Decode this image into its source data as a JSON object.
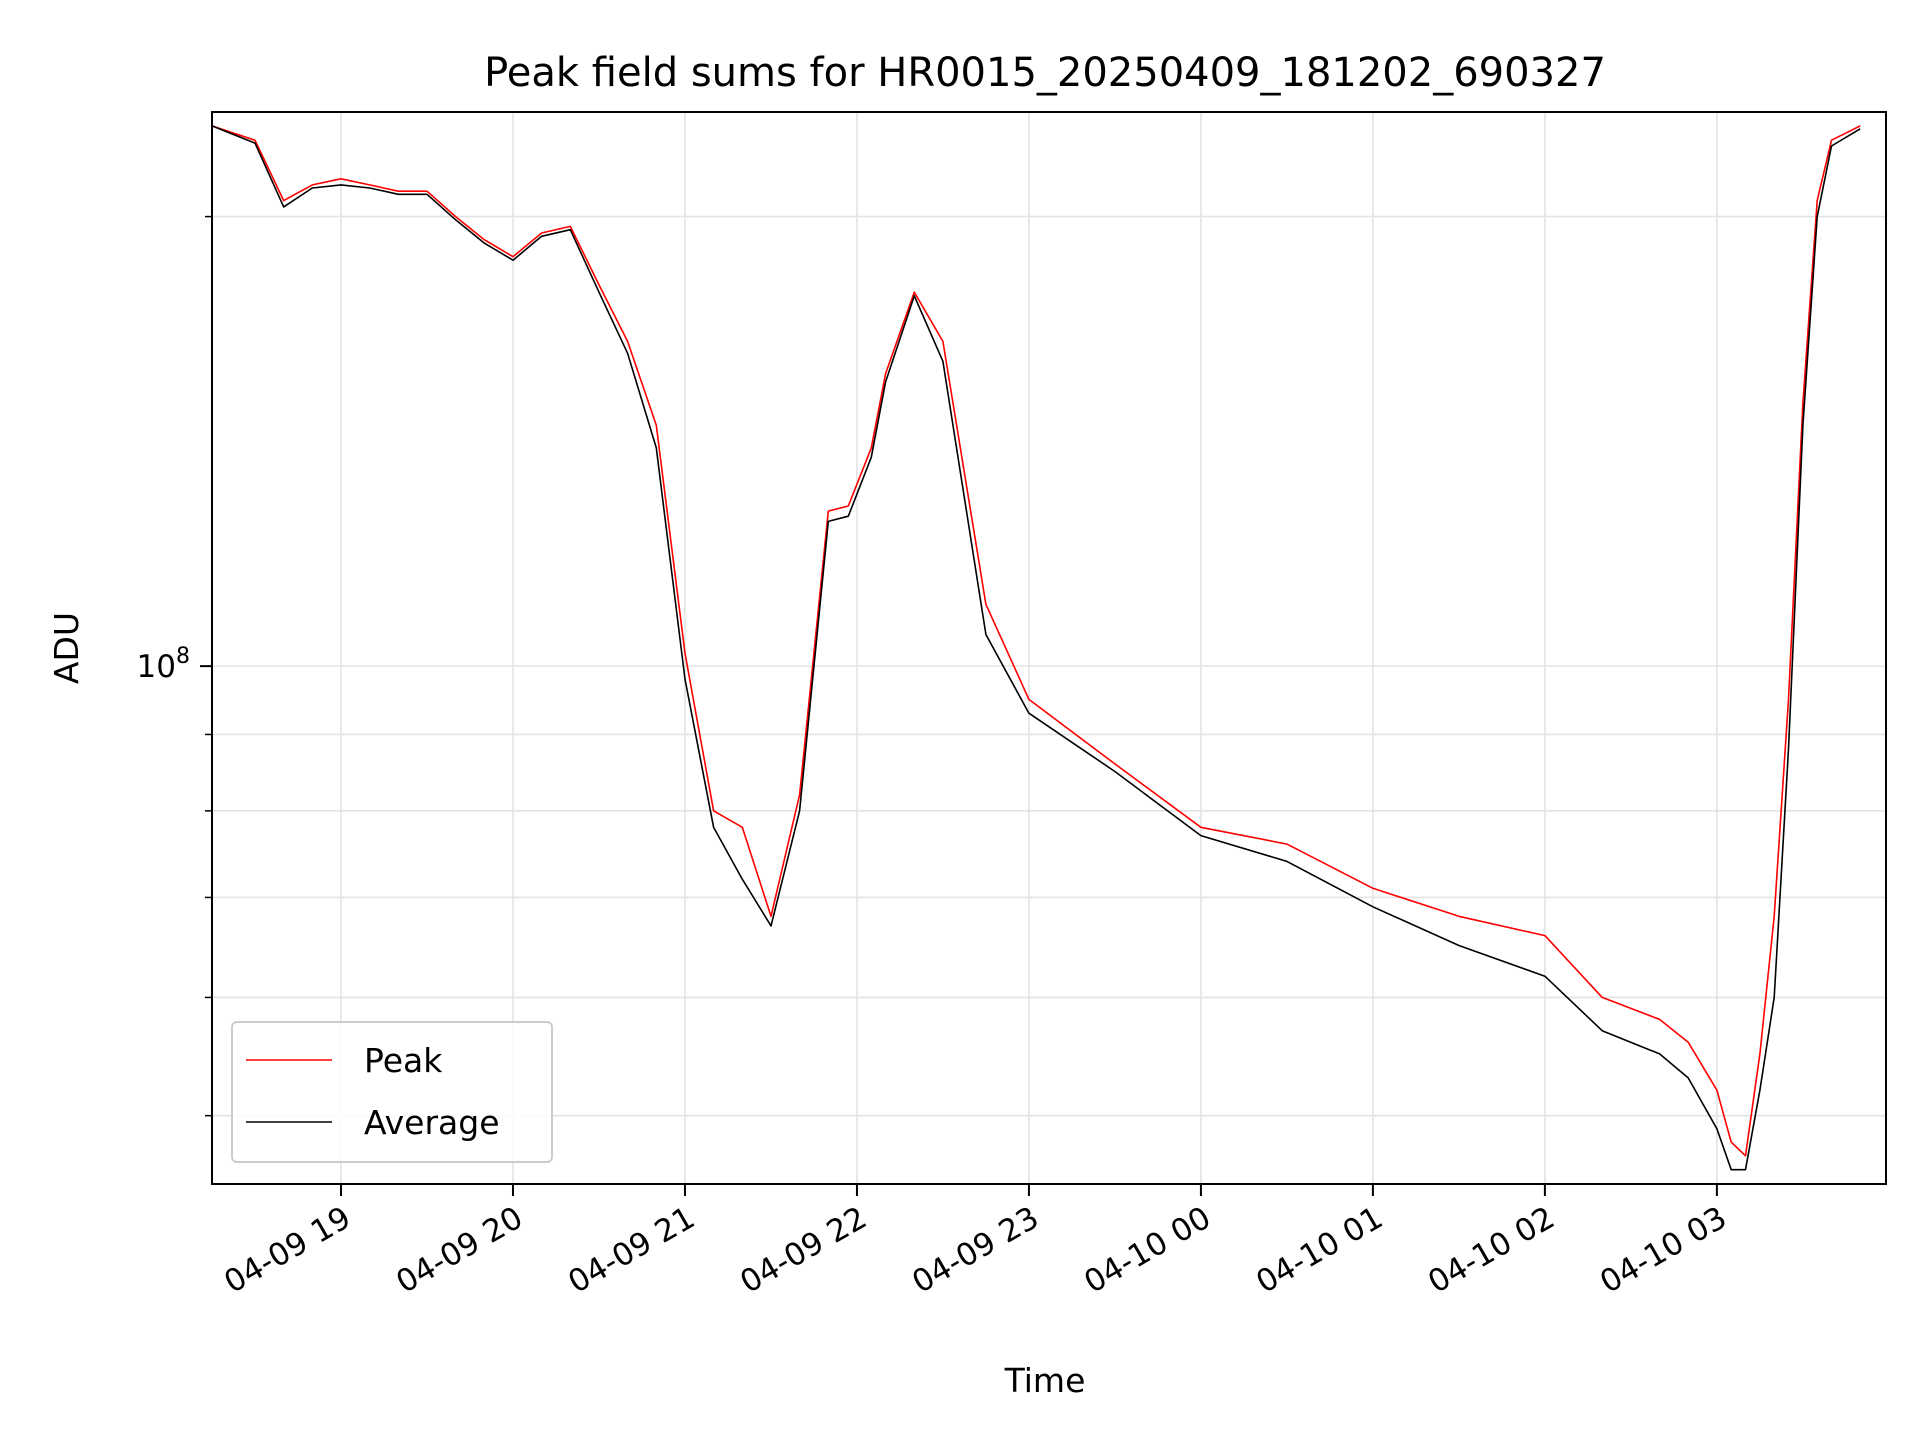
{
  "chart_data": {
    "type": "line",
    "title": "Peak field sums for HR0015_20250409_181202_690327",
    "xlabel": "Time",
    "ylabel": "ADU",
    "y_scale": "log",
    "ylim": [
      45000000,
      235000000
    ],
    "xlim": [
      "2025-04-09T18:15",
      "2025-04-10T03:59"
    ],
    "grid": true,
    "legend_position": "lower-left",
    "x_tick_labels": [
      "04-09 19",
      "04-09 20",
      "04-09 21",
      "04-09 22",
      "04-09 23",
      "04-10 00",
      "04-10 01",
      "04-10 02",
      "04-10 03"
    ],
    "x_ticks": [
      "2025-04-09T19:00",
      "2025-04-09T20:00",
      "2025-04-09T21:00",
      "2025-04-09T22:00",
      "2025-04-09T23:00",
      "2025-04-10T00:00",
      "2025-04-10T01:00",
      "2025-04-10T02:00",
      "2025-04-10T03:00"
    ],
    "y_tick_label": {
      "base": "10",
      "exponent": "8",
      "value": 100000000
    },
    "y_minor_ticks": [
      50000000,
      60000000,
      70000000,
      80000000,
      90000000,
      200000000
    ],
    "series": [
      {
        "name": "Peak",
        "color": "#ff0000",
        "x": [
          "2025-04-09T18:15",
          "2025-04-09T18:30",
          "2025-04-09T18:40",
          "2025-04-09T18:50",
          "2025-04-09T19:00",
          "2025-04-09T19:10",
          "2025-04-09T19:20",
          "2025-04-09T19:30",
          "2025-04-09T19:40",
          "2025-04-09T19:50",
          "2025-04-09T20:00",
          "2025-04-09T20:10",
          "2025-04-09T20:20",
          "2025-04-09T20:30",
          "2025-04-09T20:40",
          "2025-04-09T20:50",
          "2025-04-09T21:00",
          "2025-04-09T21:10",
          "2025-04-09T21:20",
          "2025-04-09T21:30",
          "2025-04-09T21:40",
          "2025-04-09T21:50",
          "2025-04-09T21:57",
          "2025-04-09T22:05",
          "2025-04-09T22:10",
          "2025-04-09T22:20",
          "2025-04-09T22:30",
          "2025-04-09T22:45",
          "2025-04-09T23:00",
          "2025-04-09T23:30",
          "2025-04-10T00:00",
          "2025-04-10T00:30",
          "2025-04-10T01:00",
          "2025-04-10T01:30",
          "2025-04-10T02:00",
          "2025-04-10T02:20",
          "2025-04-10T02:40",
          "2025-04-10T02:50",
          "2025-04-10T03:00",
          "2025-04-10T03:05",
          "2025-04-10T03:10",
          "2025-04-10T03:15",
          "2025-04-10T03:20",
          "2025-04-10T03:25",
          "2025-04-10T03:30",
          "2025-04-10T03:35",
          "2025-04-10T03:40",
          "2025-04-10T03:50"
        ],
        "values": [
          230000000,
          225000000,
          205000000,
          210000000,
          212000000,
          210000000,
          208000000,
          208000000,
          200000000,
          193000000,
          188000000,
          195000000,
          197000000,
          180000000,
          165000000,
          145000000,
          102000000,
          80000000,
          78000000,
          68000000,
          82000000,
          127000000,
          128000000,
          140000000,
          157000000,
          178000000,
          165000000,
          110000000,
          95000000,
          86000000,
          78000000,
          76000000,
          71000000,
          68000000,
          66000000,
          60000000,
          58000000,
          56000000,
          52000000,
          48000000,
          47000000,
          55000000,
          68000000,
          95000000,
          150000000,
          205000000,
          225000000,
          230000000
        ]
      },
      {
        "name": "Average",
        "color": "#000000",
        "x": [
          "2025-04-09T18:15",
          "2025-04-09T18:30",
          "2025-04-09T18:40",
          "2025-04-09T18:50",
          "2025-04-09T19:00",
          "2025-04-09T19:10",
          "2025-04-09T19:20",
          "2025-04-09T19:30",
          "2025-04-09T19:40",
          "2025-04-09T19:50",
          "2025-04-09T20:00",
          "2025-04-09T20:10",
          "2025-04-09T20:20",
          "2025-04-09T20:30",
          "2025-04-09T20:40",
          "2025-04-09T20:50",
          "2025-04-09T21:00",
          "2025-04-09T21:10",
          "2025-04-09T21:20",
          "2025-04-09T21:30",
          "2025-04-09T21:40",
          "2025-04-09T21:50",
          "2025-04-09T21:57",
          "2025-04-09T22:05",
          "2025-04-09T22:10",
          "2025-04-09T22:20",
          "2025-04-09T22:30",
          "2025-04-09T22:45",
          "2025-04-09T23:00",
          "2025-04-09T23:30",
          "2025-04-10T00:00",
          "2025-04-10T00:30",
          "2025-04-10T01:00",
          "2025-04-10T01:30",
          "2025-04-10T02:00",
          "2025-04-10T02:20",
          "2025-04-10T02:40",
          "2025-04-10T02:50",
          "2025-04-10T03:00",
          "2025-04-10T03:05",
          "2025-04-10T03:10",
          "2025-04-10T03:15",
          "2025-04-10T03:20",
          "2025-04-10T03:25",
          "2025-04-10T03:30",
          "2025-04-10T03:35",
          "2025-04-10T03:40",
          "2025-04-10T03:50"
        ],
        "values": [
          230000000,
          224000000,
          203000000,
          209000000,
          210000000,
          209000000,
          207000000,
          207000000,
          199000000,
          192000000,
          187000000,
          194000000,
          196000000,
          178000000,
          162000000,
          140000000,
          98000000,
          78000000,
          72000000,
          67000000,
          80000000,
          125000000,
          126000000,
          138000000,
          155000000,
          177000000,
          160000000,
          105000000,
          93000000,
          85000000,
          77000000,
          74000000,
          69000000,
          65000000,
          62000000,
          57000000,
          55000000,
          53000000,
          49000000,
          46000000,
          46000000,
          52000000,
          60000000,
          88000000,
          145000000,
          200000000,
          223000000,
          229000000
        ]
      }
    ]
  }
}
